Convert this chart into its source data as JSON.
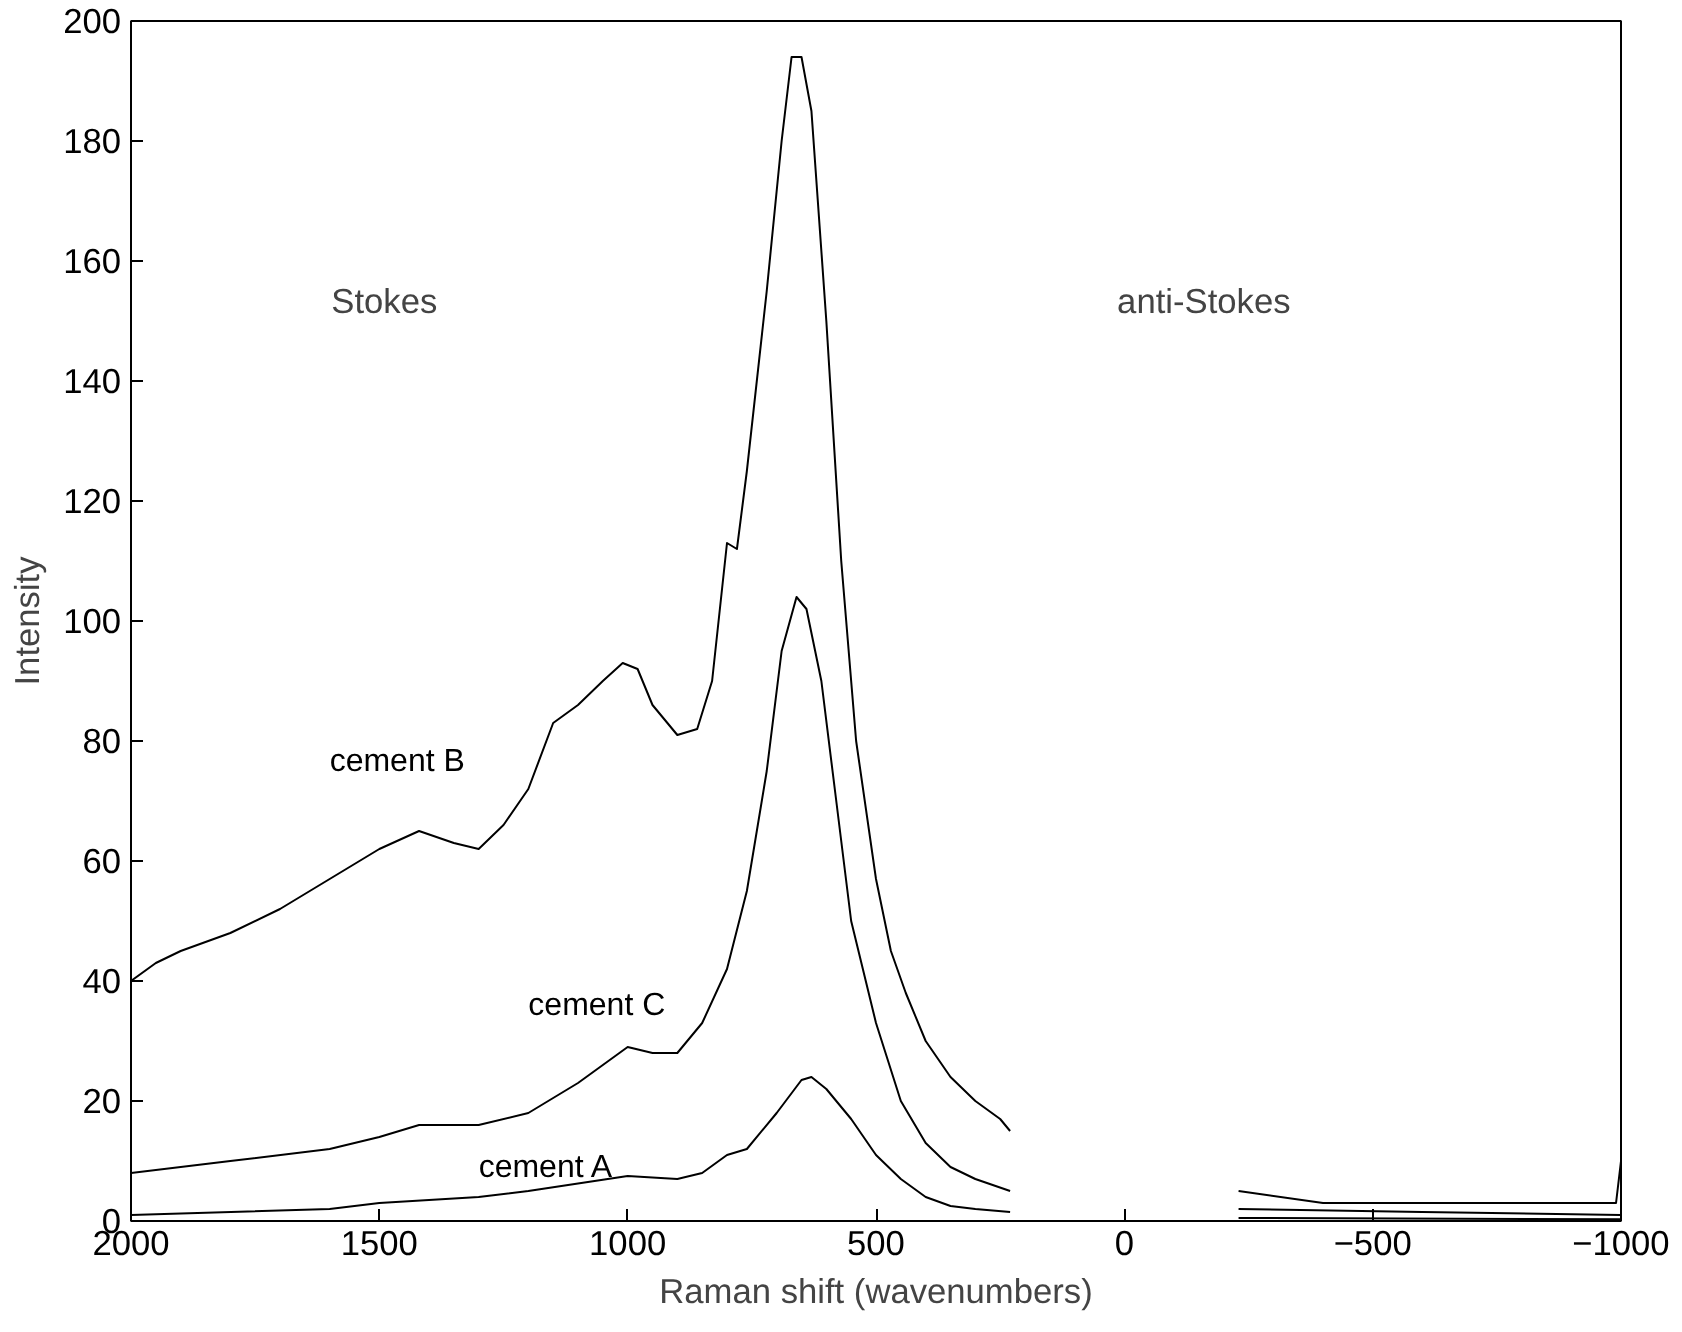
{
  "chart_data": {
    "type": "line",
    "xlabel": "Raman shift (wavenumbers)",
    "ylabel": "Intensity",
    "xlim": [
      2000,
      -1000
    ],
    "xticks": [
      2000,
      1500,
      1000,
      500,
      0,
      -500,
      -1000
    ],
    "ylim": [
      0,
      200
    ],
    "yticks": [
      0,
      20,
      40,
      60,
      80,
      100,
      120,
      140,
      160,
      180,
      200
    ],
    "grid": false,
    "marker": "none",
    "line_style": "solid",
    "annotations": [
      "Stokes",
      "anti-Stokes"
    ],
    "series": [
      {
        "name": "cement B",
        "color": "#000000",
        "x": [
          2000,
          1950,
          1900,
          1800,
          1700,
          1600,
          1500,
          1420,
          1350,
          1300,
          1250,
          1200,
          1150,
          1100,
          1050,
          1010,
          980,
          950,
          900,
          860,
          830,
          800,
          780,
          760,
          720,
          690,
          670,
          650,
          630,
          600,
          570,
          540,
          500,
          470,
          440,
          400,
          350,
          300,
          250,
          230,
          0,
          -230,
          -400,
          -600,
          -800,
          -990,
          -1000
        ],
        "values": [
          40,
          43,
          45,
          48,
          52,
          57,
          62,
          65,
          63,
          62,
          66,
          72,
          83,
          86,
          90,
          93,
          92,
          86,
          81,
          82,
          90,
          113,
          112,
          125,
          155,
          180,
          194,
          194,
          185,
          150,
          110,
          80,
          57,
          45,
          38,
          30,
          24,
          20,
          17,
          15,
          null,
          5,
          3,
          3,
          3,
          3,
          10
        ]
      },
      {
        "name": "cement C",
        "color": "#000000",
        "x": [
          2000,
          1800,
          1600,
          1500,
          1420,
          1300,
          1200,
          1100,
          1000,
          950,
          900,
          850,
          800,
          760,
          720,
          690,
          660,
          640,
          610,
          580,
          550,
          500,
          450,
          400,
          350,
          300,
          230,
          0,
          -230,
          -600,
          -1000
        ],
        "values": [
          8,
          10,
          12,
          14,
          16,
          16,
          18,
          23,
          29,
          28,
          28,
          33,
          42,
          55,
          75,
          95,
          104,
          102,
          90,
          70,
          50,
          33,
          20,
          13,
          9,
          7,
          5,
          null,
          2,
          1.5,
          1
        ]
      },
      {
        "name": "cement A",
        "color": "#000000",
        "x": [
          2000,
          1600,
          1500,
          1300,
          1200,
          1000,
          900,
          850,
          800,
          760,
          700,
          650,
          630,
          600,
          550,
          500,
          450,
          400,
          350,
          300,
          230,
          0,
          -230,
          -1000
        ],
        "values": [
          1,
          2,
          3,
          4,
          5,
          7.5,
          7,
          8,
          11,
          12,
          18,
          23.5,
          24,
          22,
          17,
          11,
          7,
          4,
          2.5,
          2,
          1.5,
          null,
          0.5,
          0.3
        ]
      }
    ]
  }
}
